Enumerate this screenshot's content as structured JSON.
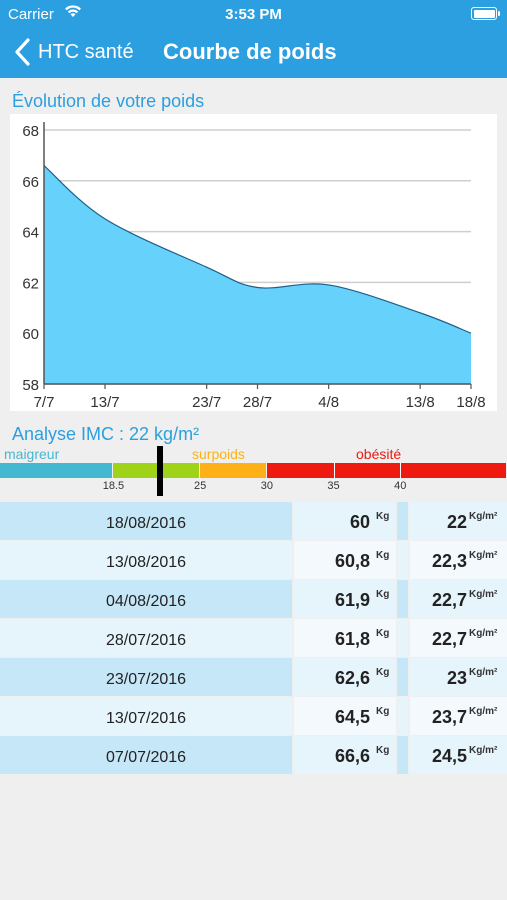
{
  "status_bar": {
    "carrier": "Carrier",
    "time": "3:53 PM"
  },
  "nav": {
    "back_label": "HTC santé",
    "title": "Courbe de poids"
  },
  "chart_title": "Évolution de votre poids",
  "chart_data": {
    "type": "area",
    "title": "Évolution de votre poids",
    "x_tick_labels": [
      "7/7",
      "13/7",
      "23/7",
      "28/7",
      "4/8",
      "13/8",
      "18/8"
    ],
    "x_days": [
      0,
      6,
      16,
      21,
      28,
      37,
      42
    ],
    "y": [
      66.6,
      64.5,
      62.6,
      61.8,
      61.9,
      60.8,
      60.0
    ],
    "ylim": [
      58,
      68
    ],
    "y_ticks": [
      58,
      60,
      62,
      64,
      66,
      68
    ],
    "grid": true,
    "fill_color": "#66d2fb",
    "line_color": "#1f5f8b"
  },
  "imc": {
    "title": "Analyse IMC : 22 kg/m²",
    "value": 22,
    "categories": [
      {
        "label": "maigreur",
        "color": "#45b8d1"
      },
      {
        "label": "",
        "color": "#9fd319"
      },
      {
        "label": "surpoids",
        "color": "#fdb116"
      },
      {
        "label": "obésité",
        "color": "#ee1a0f"
      }
    ],
    "ticks": [
      "18.5",
      "25",
      "30",
      "35",
      "40"
    ],
    "scale_min": 10,
    "scale_max": 48
  },
  "measurements": {
    "weight_unit": "Kg",
    "bmi_unit": "Kg/m²",
    "rows": [
      {
        "date": "18/08/2016",
        "weight": "60",
        "bmi": "22"
      },
      {
        "date": "13/08/2016",
        "weight": "60,8",
        "bmi": "22,3"
      },
      {
        "date": "04/08/2016",
        "weight": "61,9",
        "bmi": "22,7"
      },
      {
        "date": "28/07/2016",
        "weight": "61,8",
        "bmi": "22,7"
      },
      {
        "date": "23/07/2016",
        "weight": "62,6",
        "bmi": "23"
      },
      {
        "date": "13/07/2016",
        "weight": "64,5",
        "bmi": "23,7"
      },
      {
        "date": "07/07/2016",
        "weight": "66,6",
        "bmi": "24,5"
      }
    ]
  }
}
